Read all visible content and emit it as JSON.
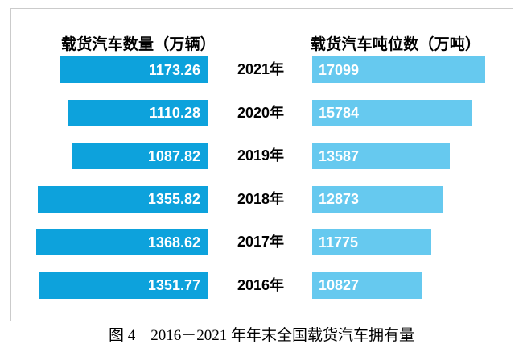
{
  "panel": {
    "border_color": "#cbcbcb",
    "background": "#ffffff"
  },
  "chart_data": {
    "type": "bar",
    "orientation": "horizontal",
    "layout": "paired-tornado",
    "categories": [
      "2021年",
      "2020年",
      "2019年",
      "2018年",
      "2017年",
      "2016年"
    ],
    "series": [
      {
        "name": "载货汽车数量（万辆）",
        "unit": "万辆",
        "color": "#0da2dc",
        "bar_alignment": "right",
        "value_label_color": "#ffffff",
        "values": [
          1173.26,
          1110.28,
          1087.82,
          1355.82,
          1368.62,
          1351.77
        ]
      },
      {
        "name": "载货汽车吨位数（万吨）",
        "unit": "万吨",
        "color": "#66c9ef",
        "bar_alignment": "left",
        "value_label_color": "#ffffff",
        "values": [
          17099,
          15784,
          13587,
          12873,
          11775,
          10827
        ]
      }
    ],
    "value_labels_position": "inside",
    "axis_visible": false,
    "grid": false,
    "caption": "图 4　2016－2021 年年末全国载货汽车拥有量"
  }
}
